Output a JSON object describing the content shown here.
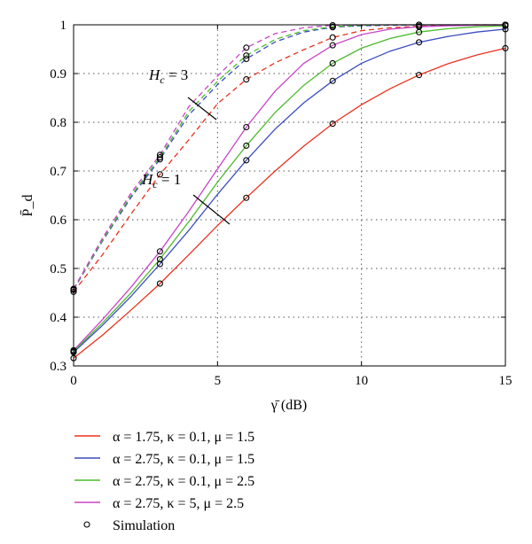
{
  "chart_data": {
    "type": "line",
    "xlabel": "γ̄ (dB)",
    "ylabel": "P̄_d",
    "xlim": [
      0,
      15
    ],
    "ylim": [
      0.3,
      1
    ],
    "xticks": [
      "0",
      "5",
      "10",
      "15"
    ],
    "yticks": [
      "0.3",
      "0.4",
      "0.5",
      "0.6",
      "0.7",
      "0.8",
      "0.9",
      "1"
    ],
    "grid": true,
    "legend_position": "below",
    "annotations": [
      {
        "text_main": "H",
        "text_sub": "c",
        "text_rest": " = 3"
      },
      {
        "text_main": "H",
        "text_sub": "c",
        "text_rest": " = 1"
      }
    ],
    "x": [
      0,
      1,
      2,
      3,
      4,
      5,
      6,
      7,
      8,
      9,
      10,
      11,
      12,
      13,
      14,
      15
    ],
    "series": [
      {
        "name": "α = 1.75, κ = 0.1, μ = 1.5",
        "color": "#e8321e",
        "hc1_values": [
          0.316,
          0.363,
          0.415,
          0.469,
          0.528,
          0.588,
          0.645,
          0.7,
          0.751,
          0.797,
          0.836,
          0.869,
          0.897,
          0.92,
          0.938,
          0.952
        ],
        "hc3_values": [
          0.452,
          0.528,
          0.612,
          0.693,
          0.764,
          0.838,
          0.888,
          0.922,
          0.949,
          0.974,
          0.988,
          0.994,
          0.997,
          0.999,
          1.0,
          1.0
        ],
        "sim_x": [
          0,
          3,
          6,
          9,
          12,
          15
        ],
        "sim_hc1": [
          0.316,
          0.469,
          0.645,
          0.797,
          0.897,
          0.952
        ],
        "sim_hc3": [
          0.452,
          0.693,
          0.888,
          0.974,
          0.997,
          1.0
        ]
      },
      {
        "name": "α = 2.75, κ = 0.1, μ = 1.5",
        "color": "#3b4cc0",
        "hc1_values": [
          0.328,
          0.383,
          0.443,
          0.509,
          0.578,
          0.652,
          0.722,
          0.786,
          0.84,
          0.885,
          0.921,
          0.946,
          0.964,
          0.976,
          0.985,
          0.991
        ],
        "hc3_values": [
          0.456,
          0.556,
          0.646,
          0.724,
          0.815,
          0.877,
          0.93,
          0.965,
          0.985,
          0.995,
          0.998,
          0.999,
          1.0,
          1.0,
          1.0,
          1.0
        ],
        "sim_x": [
          0,
          3,
          6,
          9,
          12,
          15
        ],
        "sim_hc1": [
          0.328,
          0.509,
          0.722,
          0.885,
          0.964,
          0.991
        ],
        "sim_hc3": [
          0.456,
          0.724,
          0.93,
          0.995,
          1.0,
          1.0
        ]
      },
      {
        "name": "α = 2.75, κ = 0.1, μ = 2.5",
        "color": "#4cbb2c",
        "hc1_values": [
          0.33,
          0.388,
          0.45,
          0.519,
          0.596,
          0.677,
          0.752,
          0.82,
          0.876,
          0.921,
          0.952,
          0.972,
          0.985,
          0.992,
          0.996,
          0.998
        ],
        "hc3_values": [
          0.457,
          0.558,
          0.65,
          0.728,
          0.822,
          0.884,
          0.937,
          0.97,
          0.988,
          0.996,
          0.999,
          1.0,
          1.0,
          1.0,
          1.0,
          1.0
        ],
        "sim_x": [
          0,
          3,
          6,
          9,
          12,
          15
        ],
        "sim_hc1": [
          0.33,
          0.519,
          0.752,
          0.921,
          0.985,
          0.998
        ],
        "sim_hc3": [
          0.457,
          0.728,
          0.937,
          0.996,
          1.0,
          1.0
        ]
      },
      {
        "name": "α = 2.75, κ = 5, μ = 2.5",
        "color": "#c845c8",
        "hc1_values": [
          0.332,
          0.395,
          0.462,
          0.535,
          0.617,
          0.704,
          0.79,
          0.864,
          0.921,
          0.958,
          0.98,
          0.991,
          0.996,
          0.998,
          0.999,
          1.0
        ],
        "hc3_values": [
          0.458,
          0.562,
          0.655,
          0.733,
          0.832,
          0.895,
          0.953,
          0.982,
          0.994,
          0.999,
          1.0,
          1.0,
          1.0,
          1.0,
          1.0,
          1.0
        ],
        "sim_x": [
          0,
          3,
          6,
          9,
          12,
          15
        ],
        "sim_hc1": [
          0.332,
          0.535,
          0.79,
          0.958,
          0.996,
          1.0
        ],
        "sim_hc3": [
          0.458,
          0.733,
          0.953,
          0.999,
          1.0,
          1.0
        ]
      }
    ],
    "simulation_label": "Simulation"
  }
}
